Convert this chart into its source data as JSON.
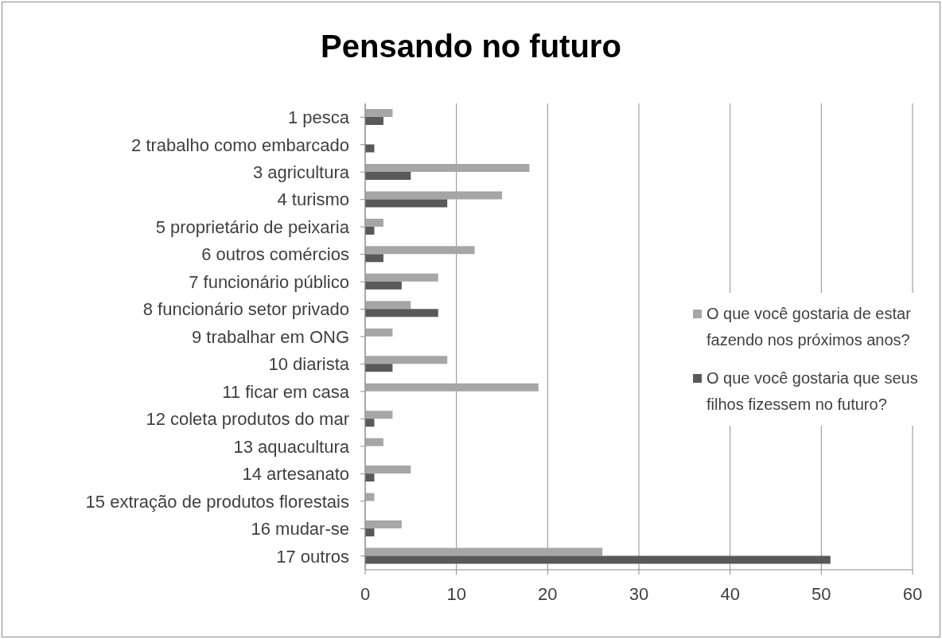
{
  "chart_data": {
    "type": "bar",
    "orientation": "horizontal",
    "title": "Pensando no futuro",
    "categories": [
      "1 pesca",
      "2 trabalho como embarcado",
      "3 agricultura",
      "4 turismo",
      "5 proprietário de peixaria",
      "6 outros comércios",
      "7 funcionário público",
      "8 funcionário setor privado",
      "9 trabalhar em ONG",
      "10 diarista",
      "11 ficar em casa",
      "12 coleta produtos do mar",
      "13 aquacultura",
      "14 artesanato",
      "15 extração de produtos florestais",
      "16 mudar-se",
      "17 outros"
    ],
    "series": [
      {
        "name": "O que você gostaria de estar fazendo nos próximos anos?",
        "color": "#a6a6a6",
        "values": [
          3,
          0,
          18,
          15,
          2,
          12,
          8,
          5,
          3,
          9,
          19,
          3,
          2,
          5,
          1,
          4,
          26
        ]
      },
      {
        "name": "O que você gostaria que seus filhos fizessem no futuro?",
        "color": "#595959",
        "values": [
          2,
          1,
          5,
          9,
          1,
          2,
          4,
          8,
          0,
          3,
          0,
          1,
          0,
          1,
          0,
          1,
          51
        ]
      }
    ],
    "xlim": [
      0,
      60
    ],
    "xticks": [
      0,
      10,
      20,
      30,
      40,
      50,
      60
    ],
    "grid": "x",
    "legend": "right"
  }
}
